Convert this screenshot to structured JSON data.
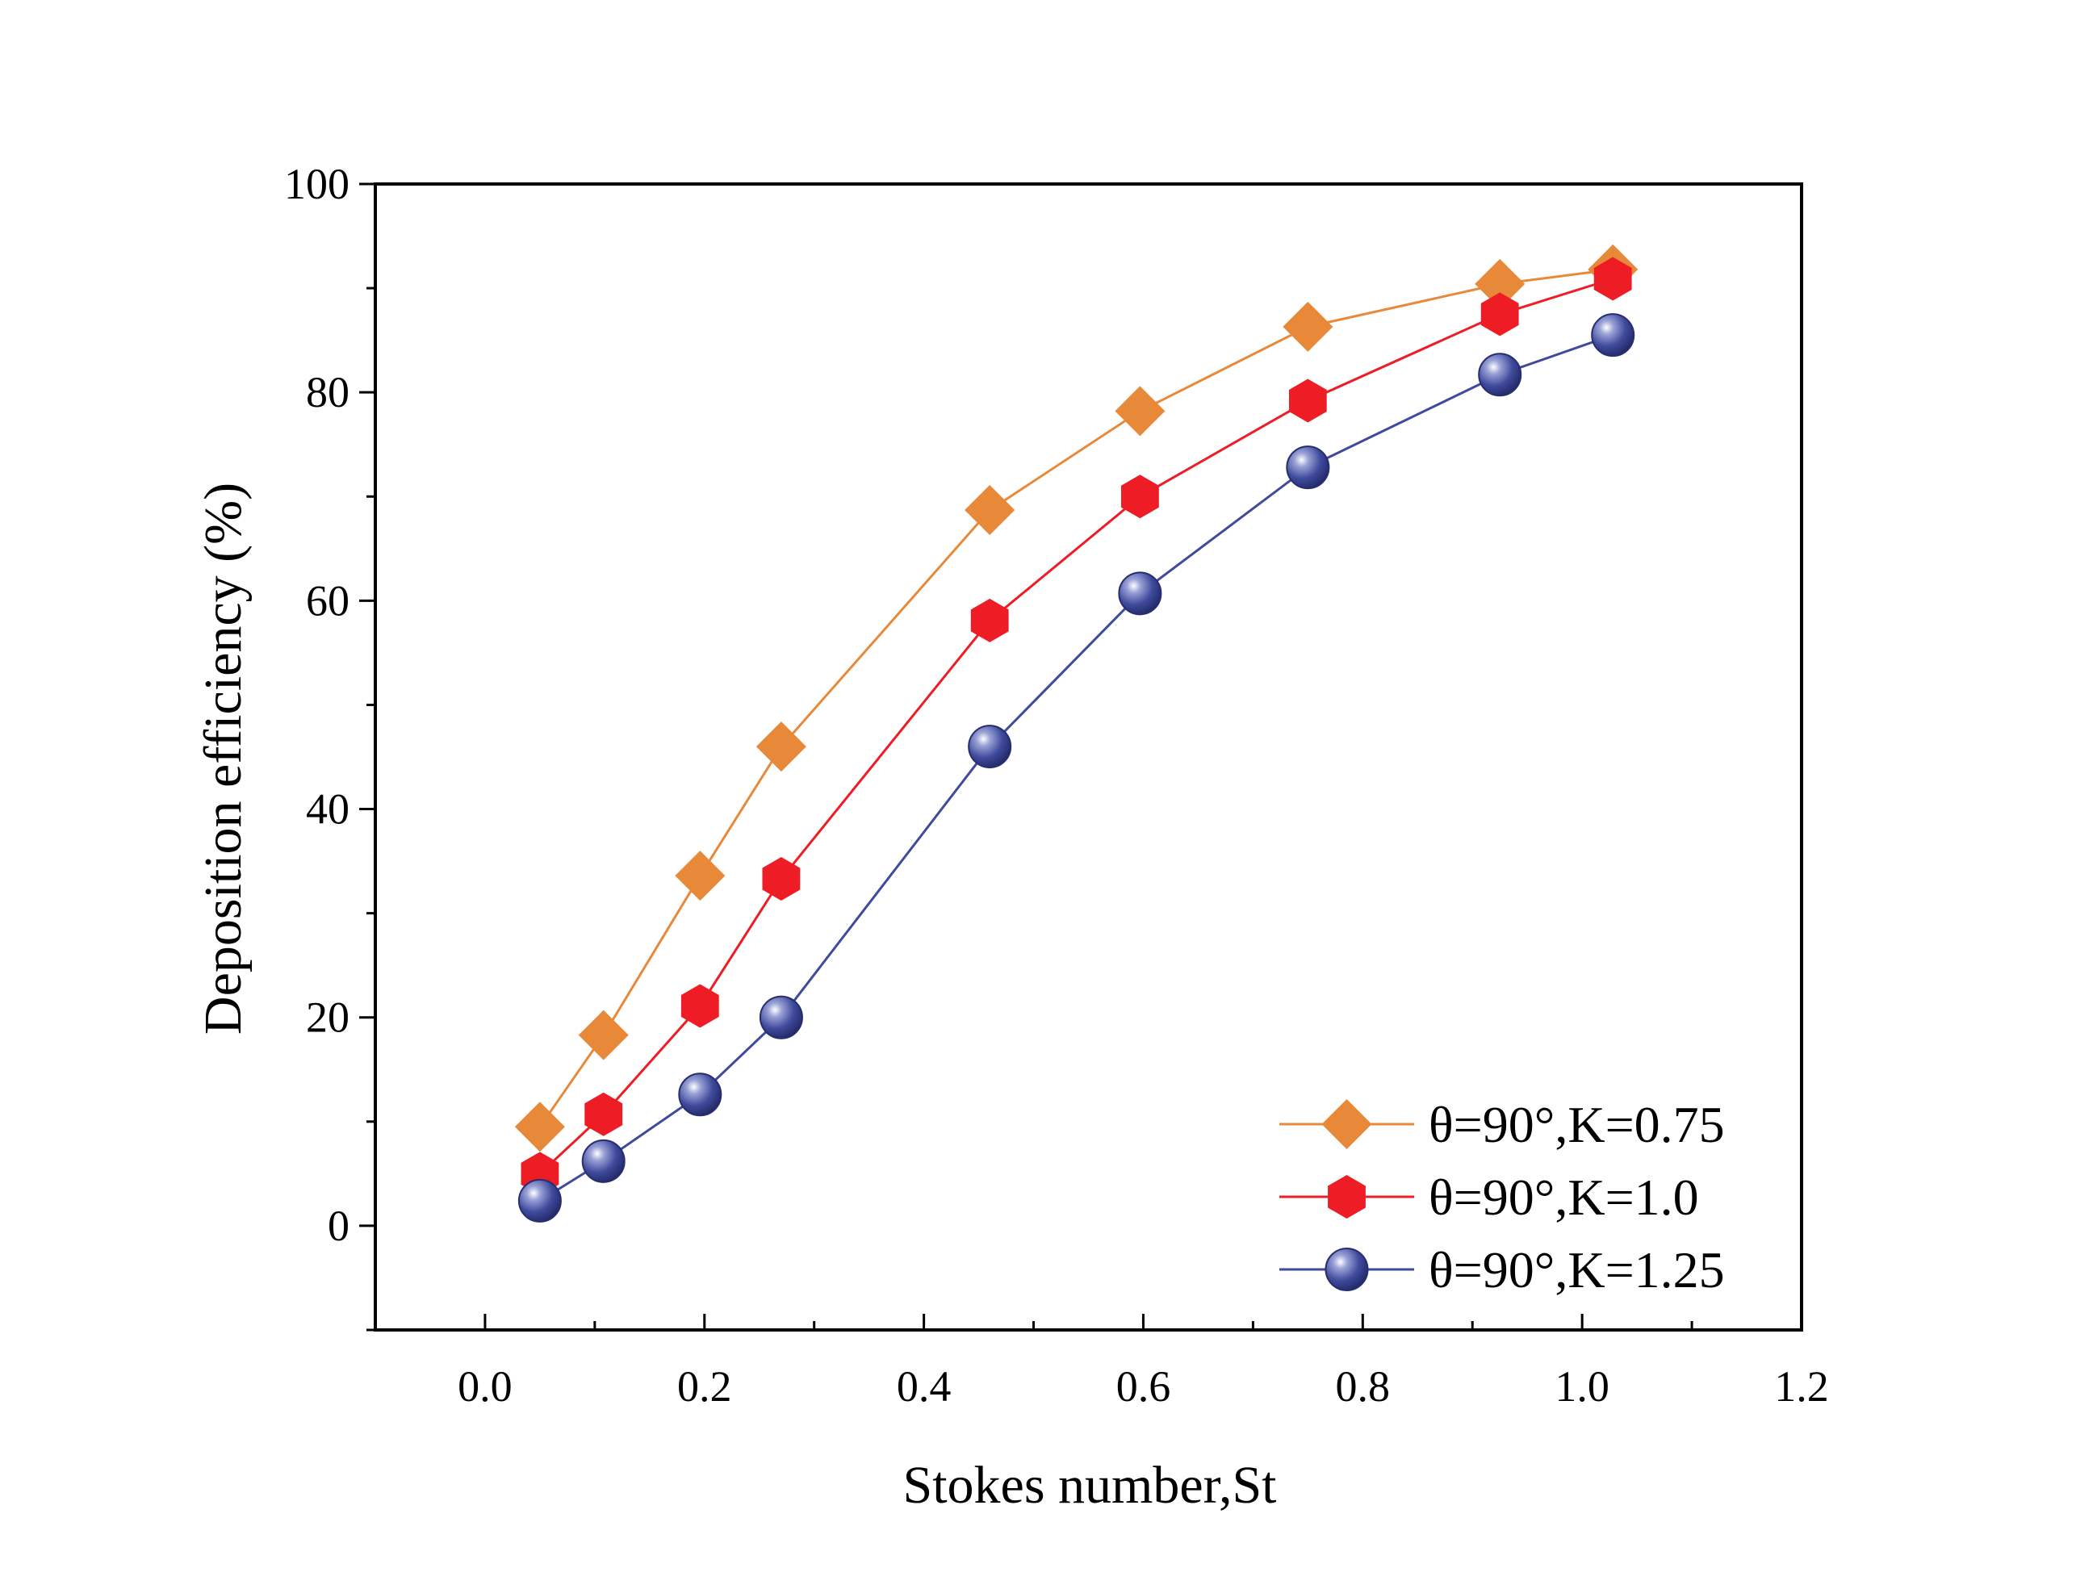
{
  "chart_data": {
    "type": "line",
    "title": "",
    "xlabel": "Stokes number,St",
    "ylabel": "Deposition efficiency (%)",
    "xlim": [
      -0.1,
      1.2
    ],
    "ylim": [
      -10,
      100
    ],
    "xticks": [
      0.0,
      0.2,
      0.4,
      0.6,
      0.8,
      1.0,
      1.2
    ],
    "xtick_labels": [
      "0.0",
      "0.2",
      "0.4",
      "0.6",
      "0.8",
      "1.0",
      "1.2"
    ],
    "yticks": [
      0,
      20,
      40,
      60,
      80,
      100
    ],
    "ytick_labels": [
      "0",
      "20",
      "40",
      "60",
      "80",
      "100"
    ],
    "grid": false,
    "legend_position": "bottom-right",
    "series": [
      {
        "name": "θ=90°,K=0.75",
        "marker": "diamond",
        "color": "#E8893A",
        "x": [
          0.05,
          0.108,
          0.196,
          0.27,
          0.46,
          0.597,
          0.75,
          0.925,
          1.028
        ],
        "y": [
          9.5,
          18.3,
          33.6,
          46.0,
          68.7,
          78.2,
          86.3,
          90.4,
          91.8
        ]
      },
      {
        "name": "θ=90°,K=1.0",
        "marker": "hexagon",
        "color": "#EE1C25",
        "x": [
          0.05,
          0.108,
          0.196,
          0.27,
          0.46,
          0.597,
          0.75,
          0.925,
          1.028
        ],
        "y": [
          5.0,
          10.7,
          21.1,
          33.3,
          58.1,
          70.0,
          79.2,
          87.5,
          90.9
        ]
      },
      {
        "name": "θ=90°,K=1.25",
        "marker": "sphere",
        "color": "#3F4A9C",
        "x": [
          0.05,
          0.108,
          0.196,
          0.27,
          0.46,
          0.597,
          0.75,
          0.925,
          1.028
        ],
        "y": [
          2.4,
          6.2,
          12.6,
          20.0,
          46.0,
          60.7,
          72.8,
          81.7,
          85.5
        ]
      }
    ]
  }
}
